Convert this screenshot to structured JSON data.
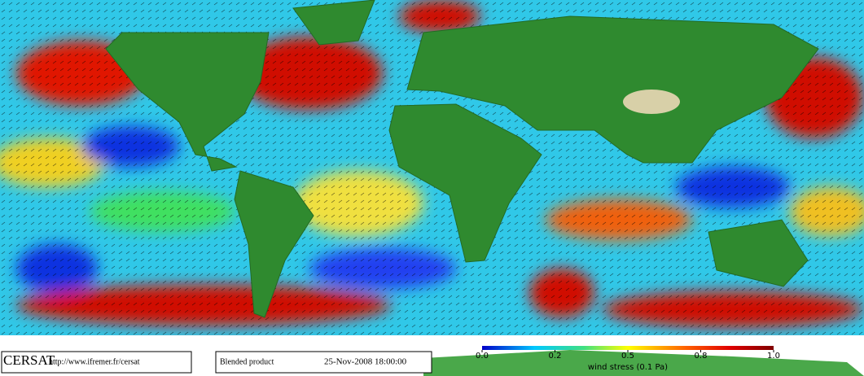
{
  "logo": "CERSAT",
  "url": "http://www.ifremer.fr/cersat",
  "product": "Blended product",
  "date": "25-Nov-2008 18:00:00",
  "colorbar": {
    "label": "wind stress (0.1 Pa)",
    "ticks": [
      {
        "value": 0,
        "label": "0.0"
      },
      0.2,
      0.5,
      0.8,
      {
        "value": 1,
        "label": "1.0"
      }
    ]
  }
}
